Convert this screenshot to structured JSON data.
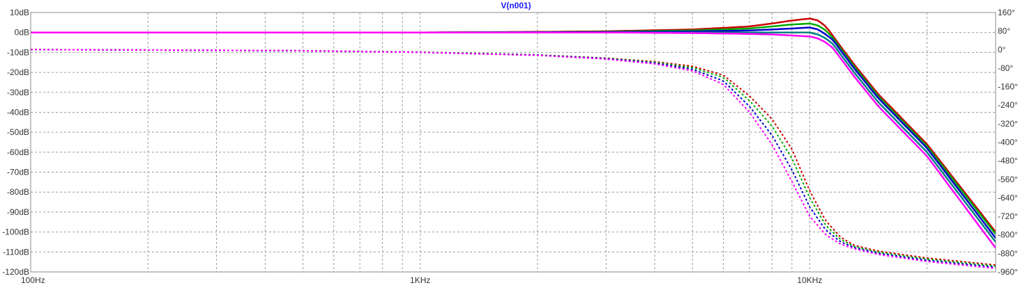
{
  "chart_data": {
    "type": "line",
    "title": "V(n001)",
    "x_scale": "log",
    "xlim": [
      100,
      30000
    ],
    "x_ticks": [
      100,
      1000,
      10000
    ],
    "x_tick_labels": [
      "100Hz",
      "1KHz",
      "10KHz"
    ],
    "y_left": {
      "range": [
        -120,
        10
      ],
      "ticks": [
        10,
        0,
        -10,
        -20,
        -30,
        -40,
        -50,
        -60,
        -70,
        -80,
        -90,
        -100,
        -110,
        -120
      ],
      "tick_labels": [
        "10dB",
        "0dB",
        "-10dB",
        "-20dB",
        "-30dB",
        "-40dB",
        "-50dB",
        "-60dB",
        "-70dB",
        "-80dB",
        "-90dB",
        "-100dB",
        "-110dB",
        "-120dB"
      ]
    },
    "y_right": {
      "range": [
        -960,
        160
      ],
      "ticks": [
        160,
        80,
        0,
        -80,
        -160,
        -240,
        -320,
        -400,
        -480,
        -560,
        -640,
        -720,
        -800,
        -880,
        -960
      ],
      "tick_labels": [
        "160°",
        "80°",
        "0°",
        "-80°",
        "-160°",
        "-240°",
        "-320°",
        "-400°",
        "-480°",
        "-560°",
        "-640°",
        "-720°",
        "-800°",
        "-880°",
        "-960°"
      ]
    },
    "grid": true,
    "magnitude_curves": {
      "axis": "left",
      "style": "solid",
      "x": [
        100,
        200,
        500,
        700,
        1000,
        2000,
        3000,
        5000,
        7000,
        8000,
        9000,
        10000,
        10500,
        11000,
        11500,
        12000,
        13000,
        15000,
        20000,
        30000
      ],
      "series_db": [
        [
          0,
          0,
          0,
          0,
          0,
          0.3,
          0.6,
          1.5,
          3,
          4.5,
          6,
          7,
          6,
          3,
          -2,
          -7,
          -16,
          -31,
          -56,
          -100
        ],
        [
          0,
          0,
          0,
          0,
          0,
          0.2,
          0.4,
          1,
          2,
          3,
          4,
          4.5,
          3.5,
          1,
          -3,
          -8,
          -17,
          -32,
          -57,
          -101
        ],
        [
          0,
          0,
          0,
          0,
          0,
          0.1,
          0.2,
          0.5,
          1,
          1.5,
          2,
          2.5,
          1.5,
          -1,
          -4,
          -9,
          -18,
          -33,
          -58,
          -103
        ],
        [
          0,
          0,
          0,
          0,
          0,
          0,
          0,
          0,
          0,
          0,
          0,
          0,
          -1,
          -3,
          -6,
          -11,
          -20,
          -35,
          -60,
          -105
        ],
        [
          0,
          0,
          0,
          0,
          0,
          0,
          0,
          -0.3,
          -0.7,
          -1,
          -1.5,
          -2,
          -3,
          -5,
          -8,
          -13,
          -22,
          -37,
          -62,
          -108
        ]
      ],
      "colors": [
        "#cc0000",
        "#00aa00",
        "#0000cc",
        "#008080",
        "#ff00ff"
      ]
    },
    "phase_curves": {
      "axis": "right",
      "style": "dashed",
      "x": [
        100,
        200,
        500,
        1000,
        2000,
        3000,
        4000,
        5000,
        6000,
        7000,
        8000,
        9000,
        10000,
        11000,
        12000,
        13000,
        15000,
        20000,
        30000
      ],
      "series_deg": [
        [
          0,
          -2,
          -5,
          -11,
          -23,
          -37,
          -52,
          -72,
          -110,
          -200,
          -300,
          -430,
          -610,
          -740,
          -810,
          -845,
          -870,
          -900,
          -930
        ],
        [
          0,
          -2,
          -5,
          -11,
          -23,
          -38,
          -55,
          -78,
          -120,
          -220,
          -330,
          -470,
          -640,
          -760,
          -820,
          -850,
          -875,
          -905,
          -935
        ],
        [
          0,
          -2,
          -5,
          -12,
          -24,
          -39,
          -58,
          -85,
          -135,
          -245,
          -370,
          -520,
          -680,
          -780,
          -830,
          -855,
          -880,
          -910,
          -940
        ],
        [
          0,
          -2,
          -5,
          -12,
          -25,
          -41,
          -62,
          -92,
          -150,
          -270,
          -410,
          -570,
          -720,
          -800,
          -840,
          -860,
          -885,
          -915,
          -945
        ]
      ],
      "colors": [
        "#cc0000",
        "#00aa00",
        "#0000cc",
        "#ff00ff"
      ]
    }
  }
}
